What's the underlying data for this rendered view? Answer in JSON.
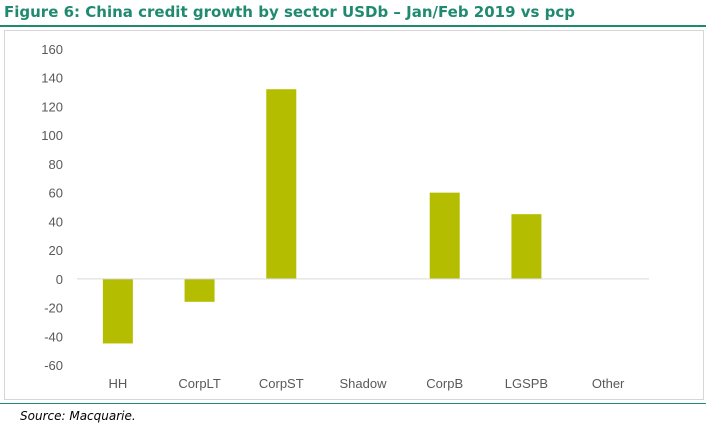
{
  "figure": {
    "title": "Figure 6: China credit growth by sector USDb – Jan/Feb 2019  vs pcp",
    "source": "Source: Macquarie."
  },
  "chart_data": {
    "type": "bar",
    "title": "",
    "xlabel": "",
    "ylabel": "",
    "categories": [
      "HH",
      "CorpLT",
      "CorpST",
      "Shadow",
      "CorpB",
      "LGSPB",
      "Other"
    ],
    "values": [
      -45,
      -16,
      132,
      0,
      60,
      45,
      0
    ],
    "ylim": [
      -60,
      160
    ],
    "yticks": [
      160,
      140,
      120,
      100,
      80,
      60,
      40,
      20,
      0,
      -20,
      -40,
      -60
    ],
    "ytick_labels": [
      "160",
      "140",
      "120",
      "100",
      "80",
      "60",
      "40",
      "20",
      "0",
      "-20",
      "-40",
      "-60"
    ],
    "bar_color": "#b5bd00",
    "grid": false,
    "legend": "none"
  }
}
